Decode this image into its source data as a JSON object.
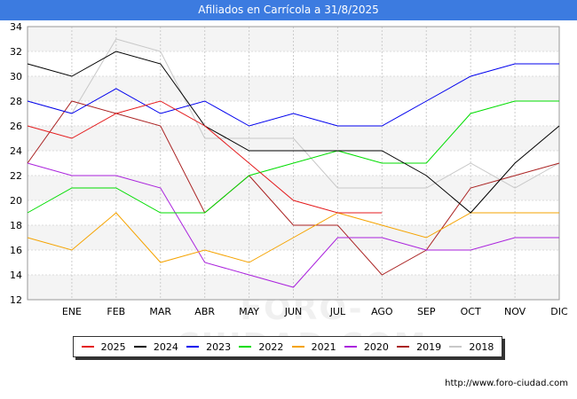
{
  "title": "Afiliados en Carrícola a 31/8/2025",
  "watermark": "FORO-CIUDAD.COM",
  "url": "http://www.foro-ciudad.com",
  "chart_data": {
    "type": "line",
    "title": "Afiliados en Carrícola a 31/8/2025",
    "xlabel": "",
    "ylabel": "",
    "ylim": [
      12,
      34
    ],
    "yticks": [
      12,
      14,
      16,
      18,
      20,
      22,
      24,
      26,
      28,
      30,
      32,
      34
    ],
    "x": [
      "",
      "ENE",
      "FEB",
      "MAR",
      "ABR",
      "MAY",
      "JUN",
      "JUL",
      "AGO",
      "SEP",
      "OCT",
      "NOV",
      "DIC"
    ],
    "grid": true,
    "legend_position": "bottom",
    "series": [
      {
        "name": "2025",
        "color": "#e41a1c",
        "values": [
          26,
          25,
          27,
          28,
          26,
          23,
          20,
          19,
          19,
          null,
          null,
          null,
          null
        ]
      },
      {
        "name": "2024",
        "color": "#000000",
        "values": [
          31,
          30,
          32,
          31,
          26,
          24,
          24,
          24,
          24,
          22,
          19,
          23,
          26
        ]
      },
      {
        "name": "2023",
        "color": "#0000ee",
        "values": [
          28,
          27,
          29,
          27,
          28,
          26,
          27,
          26,
          26,
          28,
          30,
          31,
          31
        ]
      },
      {
        "name": "2022",
        "color": "#00dd00",
        "values": [
          19,
          21,
          21,
          19,
          19,
          22,
          23,
          24,
          23,
          23,
          27,
          28,
          28
        ]
      },
      {
        "name": "2021",
        "color": "#f5a300",
        "values": [
          17,
          16,
          19,
          15,
          16,
          15,
          17,
          19,
          18,
          17,
          19,
          19,
          19
        ]
      },
      {
        "name": "2020",
        "color": "#aa22dd",
        "values": [
          23,
          22,
          22,
          21,
          15,
          14,
          13,
          17,
          17,
          16,
          16,
          17,
          17
        ]
      },
      {
        "name": "2019",
        "color": "#aa2222",
        "values": [
          23,
          28,
          27,
          26,
          19,
          22,
          18,
          18,
          14,
          16,
          21,
          22,
          23
        ]
      },
      {
        "name": "2018",
        "color": "#c8c8c8",
        "values": [
          28,
          27,
          33,
          32,
          25,
          25,
          25,
          21,
          21,
          21,
          23,
          21,
          23
        ]
      }
    ]
  }
}
